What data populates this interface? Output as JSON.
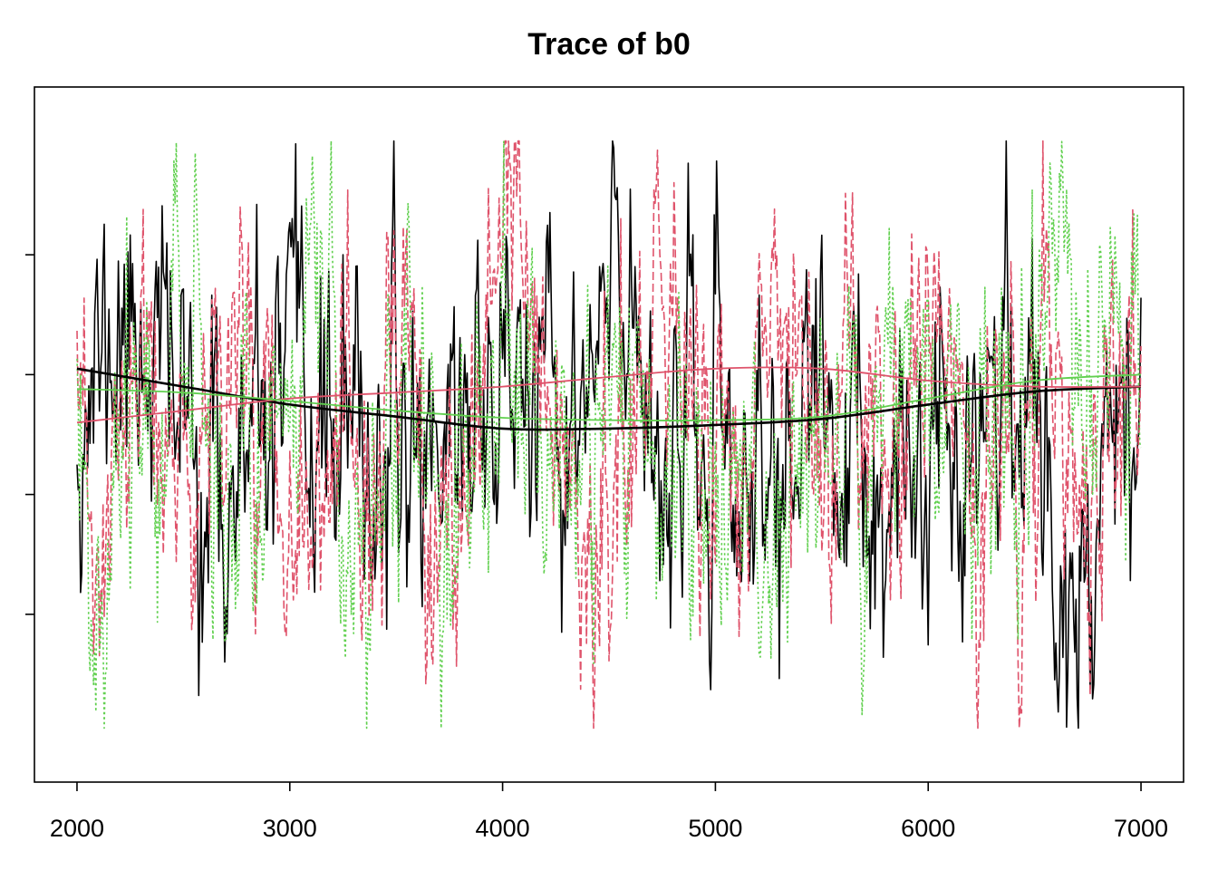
{
  "chart_data": {
    "type": "line",
    "title": "Trace of b0",
    "xlabel": "",
    "ylabel": "",
    "xlim": [
      1800,
      7200
    ],
    "ylim": [
      -2.9,
      2.9
    ],
    "x_ticks": [
      2000,
      3000,
      4000,
      5000,
      6000,
      7000
    ],
    "y_ticks": [
      -1.5,
      -0.5,
      0.5,
      1.5
    ],
    "show_y_tick_labels": false,
    "grid": false,
    "legend": "none",
    "x_range": [
      2000,
      7000
    ],
    "series": [
      {
        "color": "#000000",
        "line_style": "solid",
        "trace_seed": 11,
        "trace_keypoints": [
          [
            2000,
            0.5
          ],
          [
            2300,
            1.2
          ],
          [
            2700,
            -0.8
          ],
          [
            3000,
            0.3
          ],
          [
            3400,
            -0.3
          ],
          [
            3800,
            0.2
          ],
          [
            4000,
            0.7
          ],
          [
            4300,
            -0.2
          ],
          [
            4580,
            1.6
          ],
          [
            4800,
            -0.3
          ],
          [
            5200,
            -0.6
          ],
          [
            5500,
            0.2
          ],
          [
            5800,
            -1.4
          ],
          [
            6100,
            0.4
          ],
          [
            6400,
            0.7
          ],
          [
            6680,
            -1.8
          ],
          [
            6900,
            0.9
          ],
          [
            7000,
            0.4
          ]
        ],
        "smooth": [
          [
            2000,
            0.55
          ],
          [
            2500,
            0.4
          ],
          [
            3000,
            0.25
          ],
          [
            3500,
            0.15
          ],
          [
            4000,
            0.05
          ],
          [
            4500,
            0.05
          ],
          [
            5000,
            0.08
          ],
          [
            5500,
            0.13
          ],
          [
            6000,
            0.25
          ],
          [
            6500,
            0.36
          ],
          [
            7000,
            0.4
          ]
        ]
      },
      {
        "color": "#df536b",
        "line_style": "dashed",
        "trace_seed": 23,
        "trace_keypoints": [
          [
            2000,
            -0.3
          ],
          [
            2100,
            -1.5
          ],
          [
            2300,
            0.6
          ],
          [
            2500,
            -1.0
          ],
          [
            2700,
            1.2
          ],
          [
            3000,
            -0.2
          ],
          [
            3300,
            -1.0
          ],
          [
            3500,
            0.4
          ],
          [
            3800,
            -1.5
          ],
          [
            4050,
            2.2
          ],
          [
            4300,
            -0.4
          ],
          [
            4500,
            -1.2
          ],
          [
            4700,
            1.2
          ],
          [
            5000,
            -0.2
          ],
          [
            5300,
            0.6
          ],
          [
            5700,
            -0.3
          ],
          [
            6000,
            0.7
          ],
          [
            6300,
            -0.6
          ],
          [
            6600,
            0.2
          ],
          [
            6800,
            -0.6
          ],
          [
            7000,
            0.6
          ]
        ],
        "smooth": [
          [
            2000,
            0.1
          ],
          [
            2500,
            0.2
          ],
          [
            3000,
            0.3
          ],
          [
            3500,
            0.35
          ],
          [
            4000,
            0.4
          ],
          [
            4500,
            0.48
          ],
          [
            5000,
            0.55
          ],
          [
            5500,
            0.55
          ],
          [
            6000,
            0.45
          ],
          [
            6500,
            0.4
          ],
          [
            7000,
            0.4
          ]
        ]
      },
      {
        "color": "#61d04f",
        "line_style": "dotted",
        "trace_seed": 37,
        "trace_keypoints": [
          [
            2000,
            0.0
          ],
          [
            2100,
            -1.5
          ],
          [
            2300,
            0.5
          ],
          [
            2500,
            1.1
          ],
          [
            2700,
            -0.4
          ],
          [
            3000,
            0.4
          ],
          [
            3120,
            2.0
          ],
          [
            3300,
            -1.8
          ],
          [
            3500,
            0.5
          ],
          [
            3800,
            -0.7
          ],
          [
            4000,
            0.6
          ],
          [
            4300,
            -0.5
          ],
          [
            4600,
            0.4
          ],
          [
            4900,
            -0.4
          ],
          [
            5200,
            -1.2
          ],
          [
            5500,
            0.2
          ],
          [
            5700,
            -0.7
          ],
          [
            5900,
            1.0
          ],
          [
            6200,
            -0.1
          ],
          [
            6450,
            0.5
          ],
          [
            6600,
            2.0
          ],
          [
            6800,
            0.3
          ],
          [
            7000,
            0.8
          ]
        ],
        "smooth": [
          [
            2000,
            0.38
          ],
          [
            2500,
            0.35
          ],
          [
            3000,
            0.28
          ],
          [
            3500,
            0.2
          ],
          [
            4000,
            0.14
          ],
          [
            4500,
            0.12
          ],
          [
            5000,
            0.12
          ],
          [
            5500,
            0.15
          ],
          [
            6000,
            0.3
          ],
          [
            6500,
            0.45
          ],
          [
            7000,
            0.5
          ]
        ]
      }
    ]
  }
}
